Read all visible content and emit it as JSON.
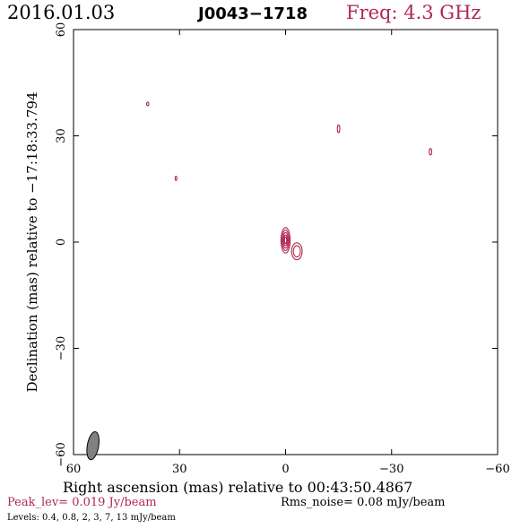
{
  "header": {
    "date": "2016.01.03",
    "source": "J0043−1718",
    "freq": "Freq: 4.3 GHz"
  },
  "footer": {
    "peak": "Peak_lev=  0.019 Jy/beam",
    "rms": "Rms_noise= 0.08 mJy/beam",
    "levels": "Levels: 0.4, 0.8,   2,   3,   7,  13 mJy/beam"
  },
  "colors": {
    "contour": "#b0284f",
    "beam": "#808080",
    "axes": "#000000"
  },
  "chart_data": {
    "type": "contour",
    "xlabel": "Right ascension (mas) relative to 00:43:50.4867",
    "ylabel": "Declination (mas) relative to −17:18:33.794",
    "xlim": [
      60,
      -60
    ],
    "ylim": [
      -60,
      60
    ],
    "xticks": [
      {
        "value": 60,
        "label": "60"
      },
      {
        "value": 30,
        "label": "30"
      },
      {
        "value": 0,
        "label": "0"
      },
      {
        "value": -30,
        "label": "−30"
      },
      {
        "value": -60,
        "label": "−60"
      }
    ],
    "yticks": [
      {
        "value": -60,
        "label": "−60"
      },
      {
        "value": -30,
        "label": "−30"
      },
      {
        "value": 0,
        "label": "0"
      },
      {
        "value": 30,
        "label": "30"
      },
      {
        "value": 60,
        "label": "60"
      }
    ],
    "contour_levels_mJy": [
      0.4,
      0.8,
      2,
      3,
      7,
      13
    ],
    "peak_Jy_per_beam": 0.019,
    "rms_noise_mJy_per_beam": 0.08,
    "components": [
      {
        "ra": 0.0,
        "dec": 0.5,
        "rings": [
          [
            1.3,
            3.6
          ],
          [
            1.0,
            2.9
          ],
          [
            0.75,
            2.2
          ],
          [
            0.5,
            1.5
          ],
          [
            0.3,
            0.9
          ]
        ]
      },
      {
        "ra": -3.2,
        "dec": -2.6,
        "rings": [
          [
            1.5,
            2.4
          ],
          [
            1.0,
            1.6
          ]
        ]
      },
      {
        "ra": -15.0,
        "dec": 32.0,
        "rings": [
          [
            0.35,
            1.1
          ]
        ]
      },
      {
        "ra": -41.0,
        "dec": 25.5,
        "rings": [
          [
            0.35,
            0.9
          ]
        ]
      },
      {
        "ra": 39.0,
        "dec": 39.0,
        "rings": [
          [
            0.3,
            0.5
          ]
        ]
      },
      {
        "ra": 31.0,
        "dec": 18.0,
        "rings": [
          [
            0.25,
            0.6
          ]
        ]
      }
    ],
    "beam": {
      "ra": 54.5,
      "dec": -57.5,
      "major": 4.0,
      "minor": 1.6,
      "pa_deg": 10
    }
  }
}
